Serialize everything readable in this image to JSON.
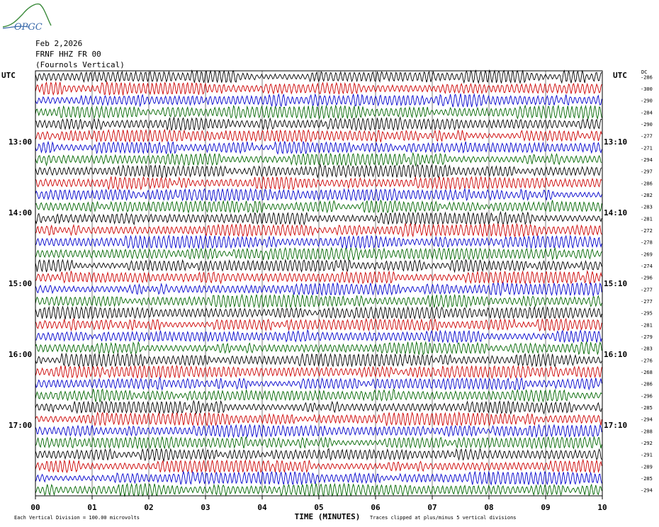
{
  "logo": {
    "text": "OPGC",
    "name": "opgc-logo"
  },
  "header": {
    "date": "Feb 2,2026",
    "station": "FRNF HHZ FR 00",
    "location": "(Fournols Vertical)"
  },
  "utc_label": "UTC",
  "dc_label": "DC",
  "colors": {
    "trace_cycle": [
      "#000000",
      "#cc0000",
      "#0000cc",
      "#006600"
    ],
    "grid": "#000000"
  },
  "chart_data": {
    "type": "line",
    "description_kind": "helicorder",
    "xlabel": "TIME (MINUTES)",
    "x_ticks": [
      "00",
      "01",
      "02",
      "03",
      "04",
      "05",
      "06",
      "07",
      "08",
      "09",
      "10"
    ],
    "xlim": [
      0,
      10
    ],
    "left_time_labels": [
      "13:00",
      "14:00",
      "15:00",
      "16:00",
      "17:00"
    ],
    "right_time_labels": [
      "13:10",
      "14:10",
      "15:10",
      "16:10",
      "17:10"
    ],
    "rows_per_hour": 6,
    "first_labeled_row": 6,
    "dc_offsets": [
      -286,
      -300,
      -290,
      -284,
      -290,
      -277,
      -271,
      -294,
      -297,
      -286,
      -282,
      -283,
      -281,
      -272,
      -278,
      -269,
      -274,
      -296,
      -277,
      -277,
      -295,
      -281,
      -279,
      -283,
      -276,
      -268,
      -286,
      -296,
      -285,
      -294,
      -288,
      -292,
      -291,
      -289,
      -285,
      -294
    ],
    "footer_left": "Each Vertical Division =  100.00 microvolts",
    "footer_right": "Traces clipped at plus/minus 5 vertical divisions"
  }
}
